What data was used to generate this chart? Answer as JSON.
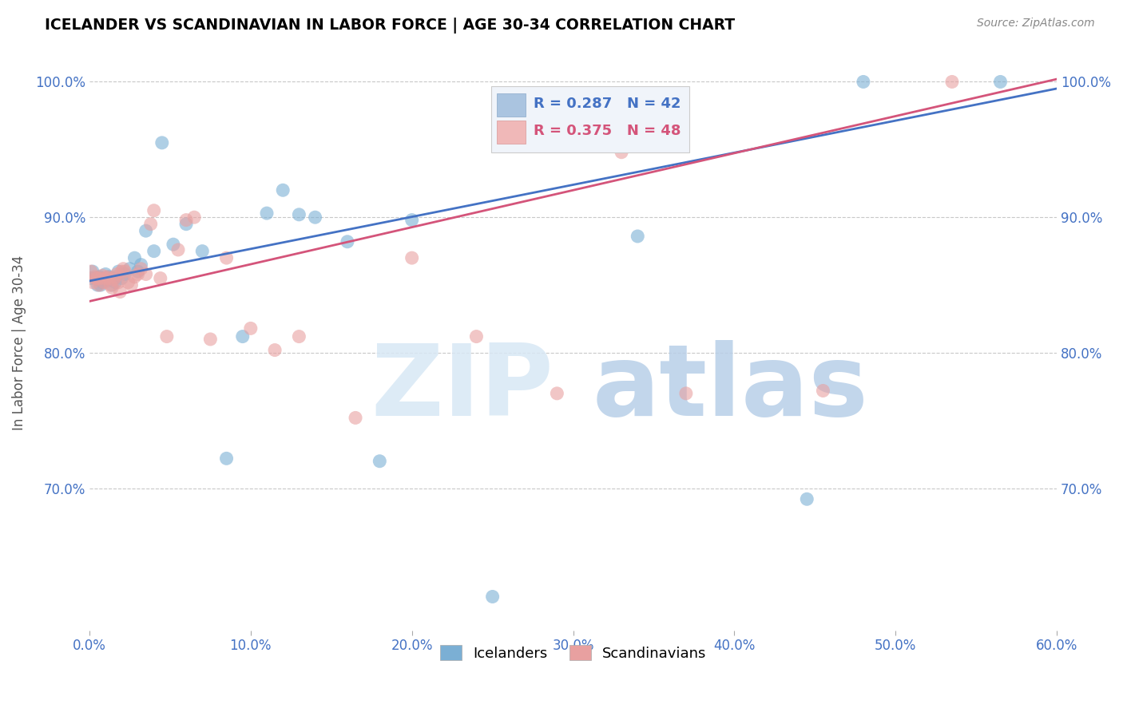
{
  "title": "ICELANDER VS SCANDINAVIAN IN LABOR FORCE | AGE 30-34 CORRELATION CHART",
  "source": "Source: ZipAtlas.com",
  "ylabel": "In Labor Force | Age 30-34",
  "xlim": [
    0.0,
    0.6
  ],
  "ylim": [
    0.595,
    1.02
  ],
  "yticks": [
    0.7,
    0.8,
    0.9,
    1.0
  ],
  "ytick_labels": [
    "70.0%",
    "80.0%",
    "90.0%",
    "100.0%"
  ],
  "xticks": [
    0.0,
    0.1,
    0.2,
    0.3,
    0.4,
    0.5,
    0.6
  ],
  "xtick_labels": [
    "0.0%",
    "10.0%",
    "20.0%",
    "30.0%",
    "40.0%",
    "50.0%",
    "60.0%"
  ],
  "icelanders_R": 0.287,
  "icelanders_N": 42,
  "scandinavians_R": 0.375,
  "scandinavians_N": 48,
  "blue_color": "#7bafd4",
  "pink_color": "#e8a0a0",
  "blue_line_color": "#4472c4",
  "pink_line_color": "#d4547a",
  "background_color": "#ffffff",
  "grid_color": "#c8c8c8",
  "tick_color": "#4472c4",
  "source_color": "#888888",
  "icelanders_x": [
    0.001,
    0.002,
    0.004,
    0.005,
    0.006,
    0.007,
    0.008,
    0.009,
    0.01,
    0.011,
    0.012,
    0.013,
    0.014,
    0.015,
    0.016,
    0.018,
    0.02,
    0.022,
    0.025,
    0.028,
    0.03,
    0.032,
    0.035,
    0.04,
    0.045,
    0.052,
    0.06,
    0.07,
    0.085,
    0.095,
    0.11,
    0.12,
    0.13,
    0.14,
    0.16,
    0.18,
    0.2,
    0.25,
    0.34,
    0.445,
    0.48,
    0.565
  ],
  "icelanders_y": [
    0.855,
    0.86,
    0.855,
    0.85,
    0.856,
    0.85,
    0.852,
    0.855,
    0.858,
    0.853,
    0.856,
    0.855,
    0.85,
    0.855,
    0.852,
    0.86,
    0.855,
    0.858,
    0.862,
    0.87,
    0.86,
    0.865,
    0.89,
    0.875,
    0.955,
    0.88,
    0.895,
    0.875,
    0.722,
    0.812,
    0.903,
    0.92,
    0.902,
    0.9,
    0.882,
    0.72,
    0.898,
    0.62,
    0.886,
    0.692,
    1.0,
    1.0
  ],
  "scandinavians_x": [
    0.001,
    0.002,
    0.003,
    0.004,
    0.005,
    0.006,
    0.007,
    0.008,
    0.009,
    0.01,
    0.011,
    0.012,
    0.013,
    0.014,
    0.015,
    0.016,
    0.017,
    0.018,
    0.019,
    0.02,
    0.021,
    0.022,
    0.024,
    0.026,
    0.028,
    0.03,
    0.032,
    0.035,
    0.038,
    0.04,
    0.044,
    0.048,
    0.055,
    0.06,
    0.065,
    0.075,
    0.085,
    0.1,
    0.115,
    0.13,
    0.165,
    0.2,
    0.24,
    0.29,
    0.33,
    0.37,
    0.455,
    0.535
  ],
  "scandinavians_y": [
    0.86,
    0.852,
    0.856,
    0.855,
    0.855,
    0.85,
    0.855,
    0.857,
    0.852,
    0.855,
    0.856,
    0.855,
    0.85,
    0.848,
    0.854,
    0.856,
    0.858,
    0.852,
    0.845,
    0.86,
    0.862,
    0.86,
    0.852,
    0.85,
    0.856,
    0.858,
    0.862,
    0.858,
    0.895,
    0.905,
    0.855,
    0.812,
    0.876,
    0.898,
    0.9,
    0.81,
    0.87,
    0.818,
    0.802,
    0.812,
    0.752,
    0.87,
    0.812,
    0.77,
    0.948,
    0.77,
    0.772,
    1.0
  ],
  "blue_trend_x0": 0.0,
  "blue_trend_y0": 0.853,
  "blue_trend_x1": 0.6,
  "blue_trend_y1": 0.995,
  "pink_trend_x0": 0.0,
  "pink_trend_y0": 0.838,
  "pink_trend_x1": 0.6,
  "pink_trend_y1": 1.002
}
